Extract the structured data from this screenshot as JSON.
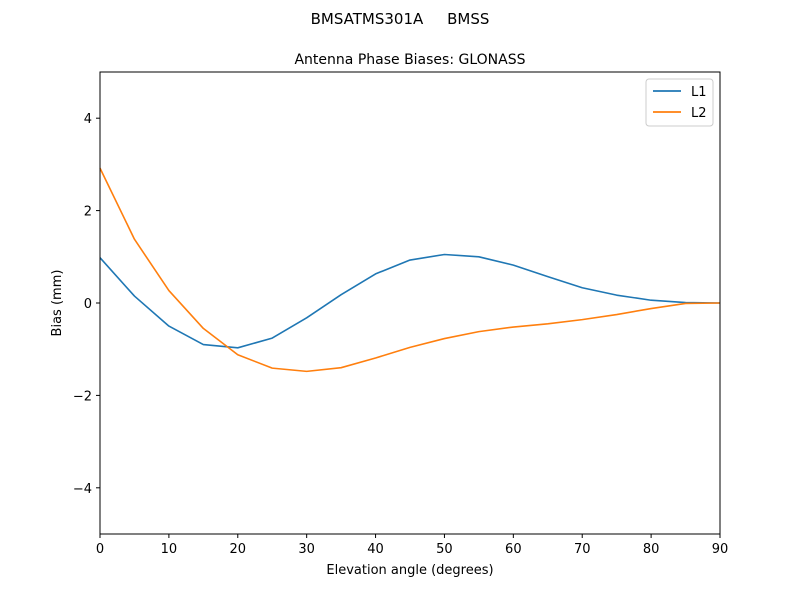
{
  "figure": {
    "suptitle": "BMSATMS301A     BMSS"
  },
  "chart_data": {
    "type": "line",
    "title": "Antenna Phase Biases: GLONASS",
    "xlabel": "Elevation angle (degrees)",
    "ylabel": "Bias (mm)",
    "xlim": [
      0,
      90
    ],
    "ylim": [
      -5,
      5
    ],
    "xticks": [
      0,
      10,
      20,
      30,
      40,
      50,
      60,
      70,
      80,
      90
    ],
    "yticks": [
      -4,
      -2,
      0,
      2,
      4
    ],
    "ytick_labels": [
      "−4",
      "−2",
      "0",
      "2",
      "4"
    ],
    "grid": false,
    "legend_position": "top-right",
    "x": [
      0,
      5,
      10,
      15,
      20,
      25,
      30,
      35,
      40,
      45,
      50,
      55,
      60,
      65,
      70,
      75,
      80,
      85,
      90
    ],
    "series": [
      {
        "name": "L1",
        "color": "#1f77b4",
        "values": [
          0.98,
          0.15,
          -0.5,
          -0.9,
          -0.97,
          -0.76,
          -0.32,
          0.18,
          0.63,
          0.93,
          1.05,
          1.0,
          0.82,
          0.57,
          0.33,
          0.17,
          0.06,
          0.01,
          0.0
        ]
      },
      {
        "name": "L2",
        "color": "#ff7f0e",
        "values": [
          2.92,
          1.38,
          0.27,
          -0.55,
          -1.12,
          -1.41,
          -1.48,
          -1.4,
          -1.19,
          -0.96,
          -0.77,
          -0.62,
          -0.52,
          -0.45,
          -0.36,
          -0.25,
          -0.12,
          -0.01,
          0.0
        ]
      }
    ]
  }
}
